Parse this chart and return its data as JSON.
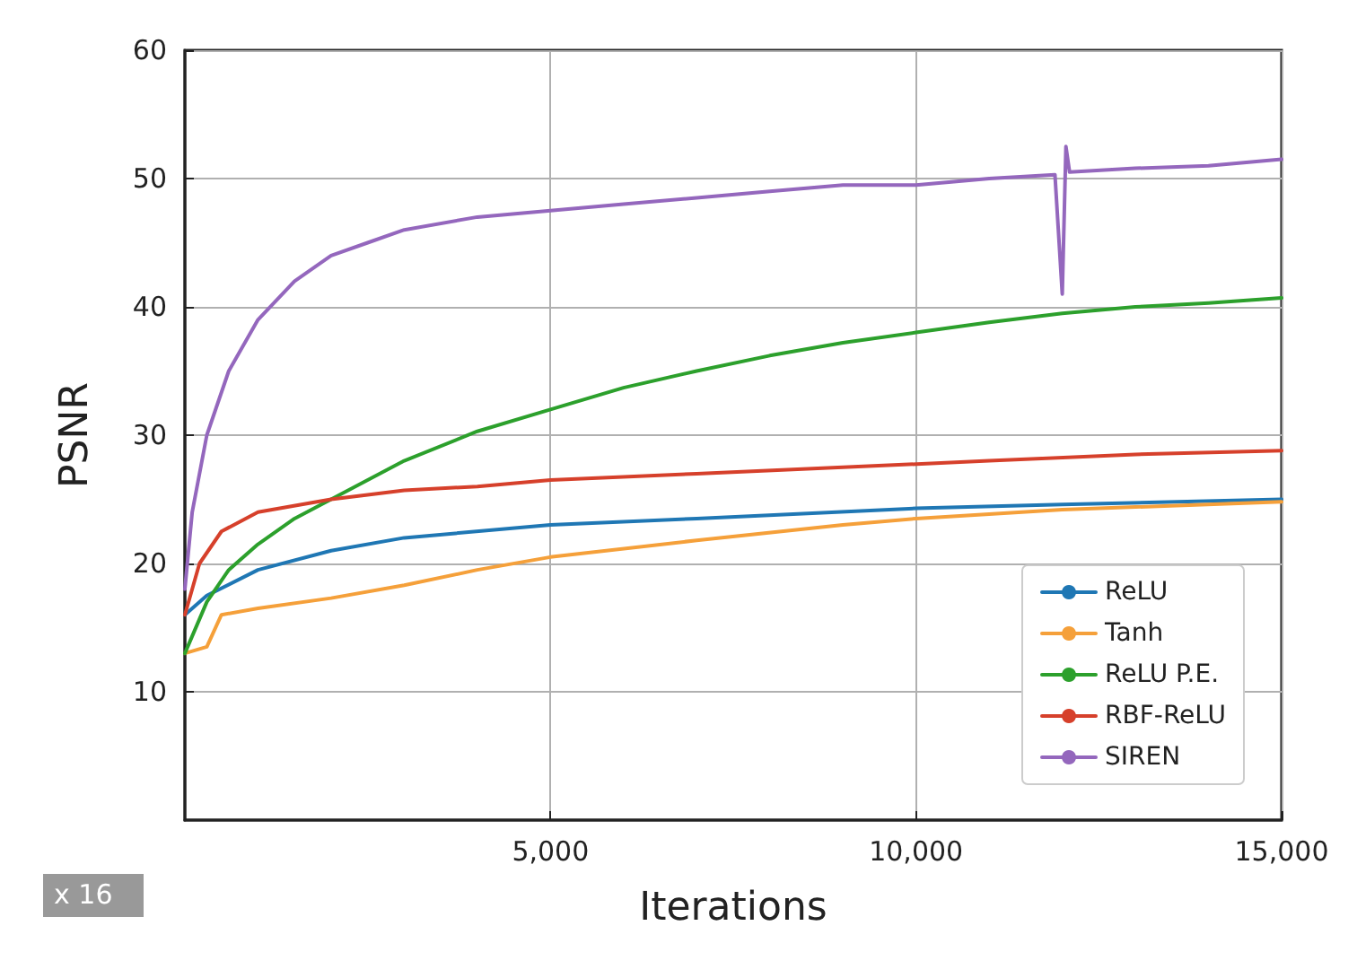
{
  "chart_data": {
    "type": "line",
    "xlabel": "Iterations",
    "ylabel": "PSNR",
    "xlim": [
      0,
      15000
    ],
    "ylim": [
      0,
      60
    ],
    "xticks": [
      {
        "value": 5000,
        "label": "5,000"
      },
      {
        "value": 10000,
        "label": "10,000"
      },
      {
        "value": 15000,
        "label": "15,000"
      }
    ],
    "yticks": [
      10,
      20,
      30,
      40,
      50,
      60
    ],
    "grid": true,
    "legend": "bottom right",
    "marker": "none",
    "line_style": "solid",
    "annotations": [
      "x 16"
    ],
    "series": [
      {
        "name": "ReLU",
        "color": "#1f77b4",
        "x": [
          0,
          300,
          1000,
          2000,
          3000,
          5000,
          7000,
          10000,
          12000,
          15000
        ],
        "values": [
          16,
          17.5,
          19.5,
          21,
          22,
          23,
          23.5,
          24.3,
          24.6,
          25
        ]
      },
      {
        "name": "Tanh",
        "color": "#f5a03a",
        "x": [
          0,
          300,
          500,
          1000,
          2000,
          3000,
          4000,
          5000,
          7000,
          9000,
          10000,
          12000,
          15000
        ],
        "values": [
          13,
          13.5,
          16,
          16.5,
          17.3,
          18.3,
          19.5,
          20.5,
          21.8,
          23,
          23.5,
          24.2,
          24.8
        ]
      },
      {
        "name": "ReLU P.E.",
        "color": "#2ca02c",
        "x": [
          0,
          300,
          600,
          1000,
          1500,
          2000,
          3000,
          4000,
          5000,
          6000,
          7000,
          8000,
          9000,
          10000,
          11000,
          12000,
          13000,
          14000,
          15000
        ],
        "values": [
          13,
          17,
          19.5,
          21.5,
          23.5,
          25,
          28,
          30.3,
          32,
          33.7,
          35,
          36.2,
          37.2,
          38,
          38.8,
          39.5,
          40,
          40.3,
          40.7
        ]
      },
      {
        "name": "RBF-ReLU",
        "color": "#d6402b",
        "x": [
          0,
          200,
          500,
          1000,
          2000,
          3000,
          4000,
          5000,
          7000,
          9000,
          11000,
          13000,
          15000
        ],
        "values": [
          16,
          20,
          22.5,
          24,
          25,
          25.7,
          26,
          26.5,
          27,
          27.5,
          28,
          28.5,
          28.8
        ]
      },
      {
        "name": "SIREN",
        "color": "#9467bd",
        "x": [
          0,
          100,
          300,
          600,
          1000,
          1500,
          2000,
          2500,
          3000,
          4000,
          5000,
          6000,
          7000,
          8000,
          9000,
          10000,
          11000,
          11900,
          12000,
          12050,
          12100,
          13000,
          14000,
          15000
        ],
        "values": [
          18,
          24,
          30,
          35,
          39,
          42,
          44,
          45,
          46,
          47,
          47.5,
          48,
          48.5,
          49,
          49.5,
          49.5,
          50,
          50.3,
          41,
          52.5,
          50.5,
          50.8,
          51,
          51.5
        ]
      }
    ]
  }
}
